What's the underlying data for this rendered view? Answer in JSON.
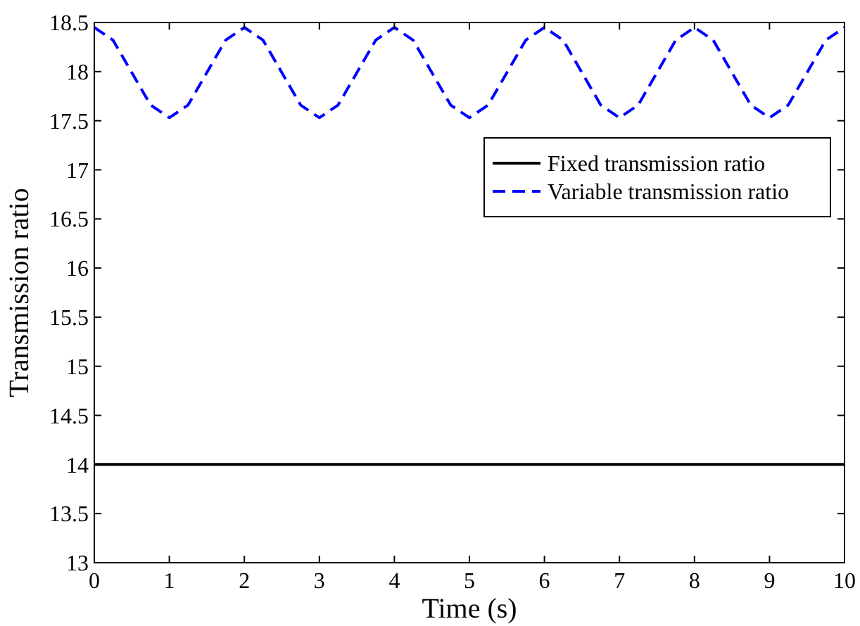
{
  "chart_data": {
    "type": "line",
    "xlabel": "Time (s)",
    "ylabel": "Transmission ratio",
    "xlim": [
      0,
      10
    ],
    "ylim": [
      13,
      18.5
    ],
    "xticks": [
      0,
      1,
      2,
      3,
      4,
      5,
      6,
      7,
      8,
      9,
      10
    ],
    "yticks": [
      13,
      13.5,
      14,
      14.5,
      15,
      15.5,
      16,
      16.5,
      17,
      17.5,
      18,
      18.5
    ],
    "grid": false,
    "legend": "top right",
    "x": [
      0,
      0.25,
      0.5,
      0.75,
      1,
      1.25,
      1.5,
      1.75,
      2,
      2.25,
      2.5,
      2.75,
      3,
      3.25,
      3.5,
      3.75,
      4,
      4.25,
      4.5,
      4.75,
      5,
      5.25,
      5.5,
      5.75,
      6,
      6.25,
      6.5,
      6.75,
      7,
      7.25,
      7.5,
      7.75,
      8,
      8.25,
      8.5,
      8.75,
      9,
      9.25,
      9.5,
      9.75,
      10
    ],
    "series": [
      {
        "name": "Fixed transmission ratio",
        "color": "#000000",
        "line_style": "solid",
        "values": [
          14,
          14,
          14,
          14,
          14,
          14,
          14,
          14,
          14,
          14,
          14,
          14,
          14,
          14,
          14,
          14,
          14,
          14,
          14,
          14,
          14,
          14,
          14,
          14,
          14,
          14,
          14,
          14,
          14,
          14,
          14,
          14,
          14,
          14,
          14,
          14,
          14,
          14,
          14,
          14,
          14
        ]
      },
      {
        "name": "Variable transmission ratio",
        "color": "#0000ff",
        "line_style": "dashed",
        "values": [
          18.45,
          18.32,
          17.99,
          17.66,
          17.53,
          17.66,
          17.99,
          18.32,
          18.45,
          18.32,
          17.99,
          17.66,
          17.53,
          17.66,
          17.99,
          18.32,
          18.45,
          18.32,
          17.99,
          17.66,
          17.53,
          17.66,
          17.99,
          18.32,
          18.45,
          18.32,
          17.99,
          17.66,
          17.53,
          17.66,
          17.99,
          18.32,
          18.45,
          18.32,
          17.99,
          17.66,
          17.53,
          17.66,
          17.99,
          18.32,
          18.45
        ]
      }
    ]
  }
}
